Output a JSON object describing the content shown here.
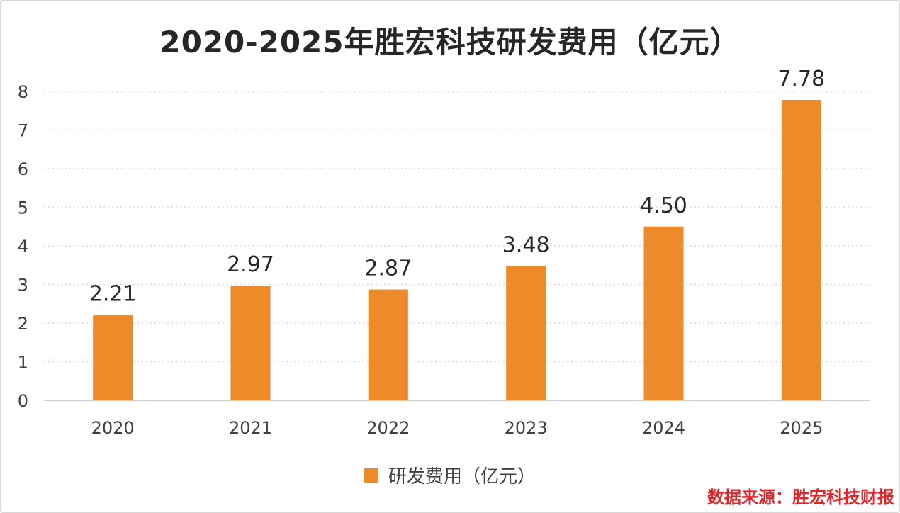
{
  "chart_data": {
    "type": "bar",
    "title": "2020-2025年胜宏科技研发费用（亿元）",
    "categories": [
      "2020",
      "2021",
      "2022",
      "2023",
      "2024",
      "2025"
    ],
    "series": [
      {
        "name": "研发费用（亿元）",
        "values": [
          2.21,
          2.97,
          2.87,
          3.48,
          4.5,
          7.78
        ],
        "data_labels": [
          "2.21",
          "2.97",
          "2.87",
          "3.48",
          "4.50",
          "7.78"
        ],
        "color": "#ed8a2a"
      }
    ],
    "xlabel": "",
    "ylabel": "",
    "ylim": [
      0,
      8
    ],
    "yticks": [
      0,
      1,
      2,
      3,
      4,
      5,
      6,
      7,
      8
    ],
    "grid": true,
    "legend": "bottom"
  },
  "source_note": "数据来源：胜宏科技财报",
  "colors": {
    "bar": "#ed8a2a",
    "gridline": "#d9d9d9",
    "axis": "#bfbfbf",
    "source_text": "#e0252a"
  }
}
